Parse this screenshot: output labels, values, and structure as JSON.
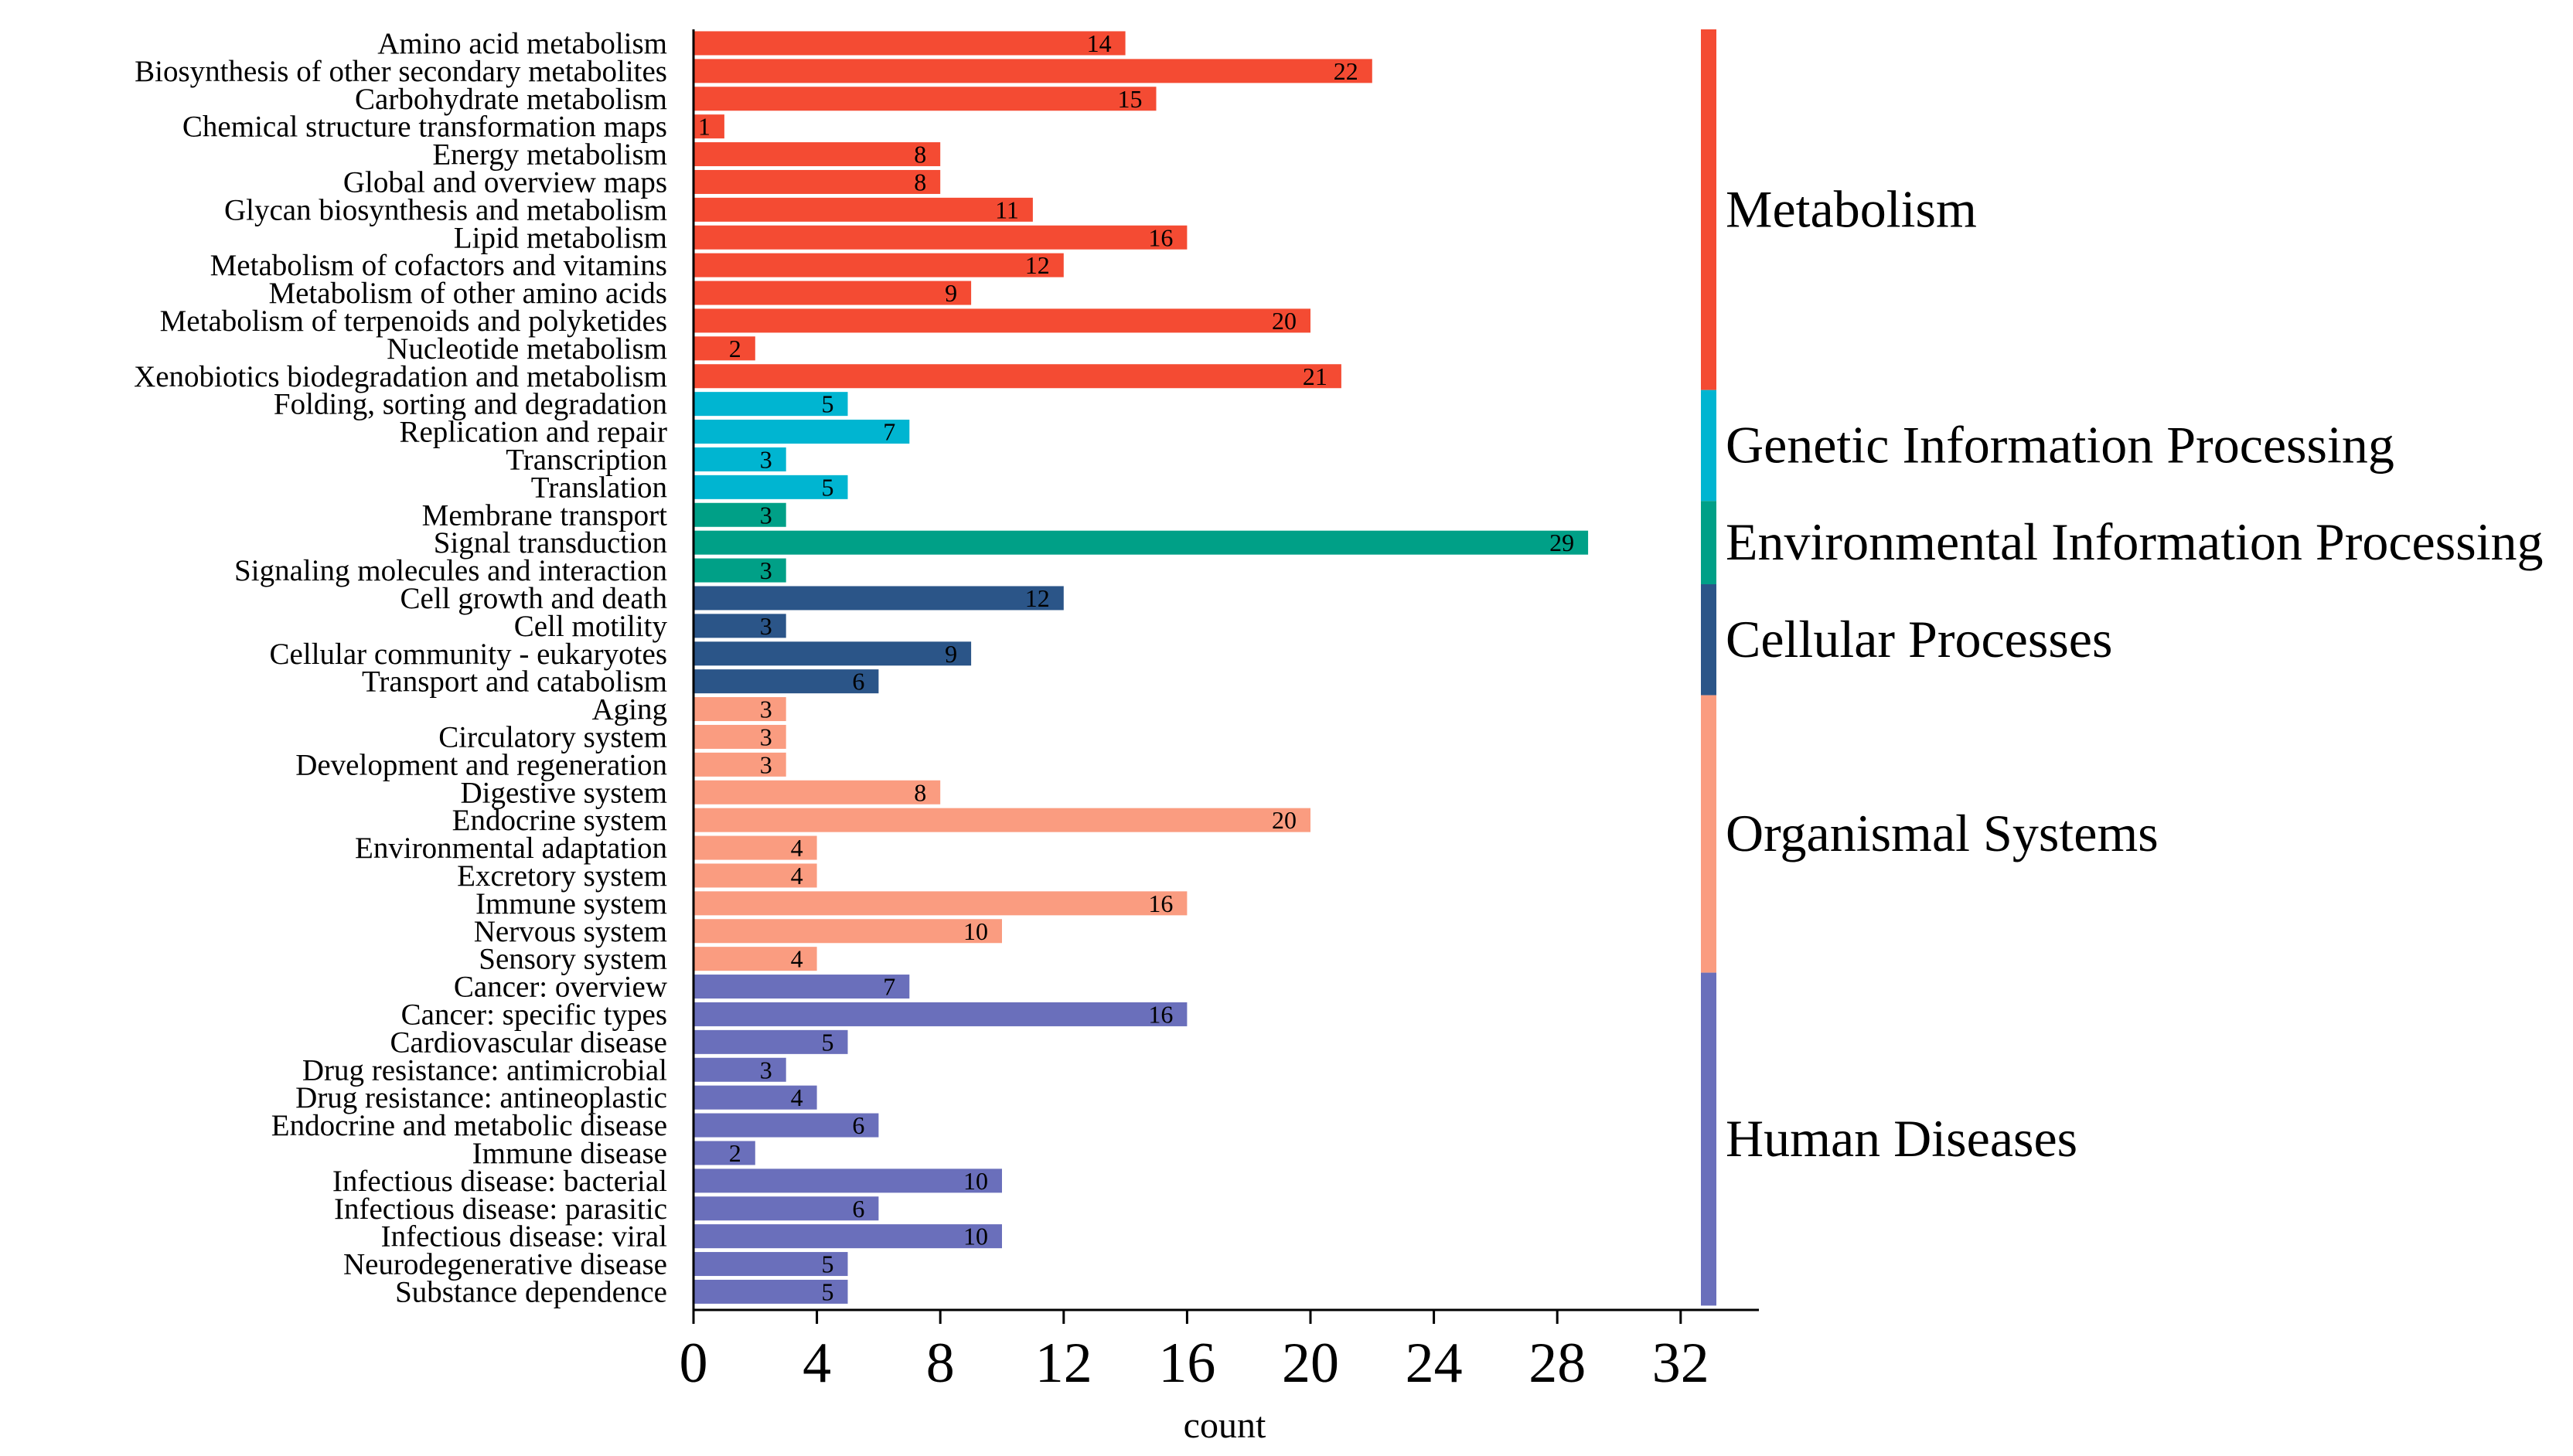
{
  "chart_data": {
    "type": "bar",
    "orientation": "horizontal",
    "title": "",
    "xlabel": "count",
    "ylabel": "",
    "xlim": [
      0,
      34
    ],
    "xticks": [
      0,
      4,
      8,
      12,
      16,
      20,
      24,
      28,
      32
    ],
    "grid": false,
    "legend": "right side colored group strip",
    "groups": [
      {
        "name": "Metabolism",
        "color": "#F44B33",
        "categories": [
          "Amino acid metabolism",
          "Biosynthesis of other secondary metabolites",
          "Carbohydrate metabolism",
          "Chemical structure transformation maps",
          "Energy metabolism",
          "Global and overview maps",
          "Glycan biosynthesis and metabolism",
          "Lipid metabolism",
          "Metabolism of cofactors and vitamins",
          "Metabolism of other amino acids",
          "Metabolism of terpenoids and polyketides",
          "Nucleotide metabolism",
          "Xenobiotics biodegradation and metabolism"
        ],
        "values": [
          14,
          22,
          15,
          1,
          8,
          8,
          11,
          16,
          12,
          9,
          20,
          2,
          21
        ]
      },
      {
        "name": "Genetic Information Processing",
        "color": "#00B5D1",
        "categories": [
          "Folding, sorting and degradation",
          "Replication and repair",
          "Transcription",
          "Translation"
        ],
        "values": [
          5,
          7,
          3,
          5
        ]
      },
      {
        "name": "Environmental Information Processing",
        "color": "#00A087",
        "categories": [
          "Membrane transport",
          "Signal transduction",
          "Signaling molecules and interaction"
        ],
        "values": [
          3,
          29,
          3
        ]
      },
      {
        "name": "Cellular Processes",
        "color": "#2B5588",
        "categories": [
          "Cell growth and death",
          "Cell motility",
          "Cellular community - eukaryotes",
          "Transport and catabolism"
        ],
        "values": [
          12,
          3,
          9,
          6
        ]
      },
      {
        "name": "Organismal Systems",
        "color": "#FA9C80",
        "categories": [
          "Aging",
          "Circulatory system",
          "Development and regeneration",
          "Digestive system",
          "Endocrine system",
          "Environmental adaptation",
          "Excretory system",
          "Immune system",
          "Nervous system",
          "Sensory system"
        ],
        "values": [
          3,
          3,
          3,
          8,
          20,
          4,
          4,
          16,
          10,
          4
        ]
      },
      {
        "name": "Human Diseases",
        "color": "#6A6FBB",
        "categories": [
          "Cancer: overview",
          "Cancer: specific types",
          "Cardiovascular disease",
          "Drug resistance: antimicrobial",
          "Drug resistance: antineoplastic",
          "Endocrine and metabolic disease",
          "Immune disease",
          "Infectious disease: bacterial",
          "Infectious disease: parasitic",
          "Infectious disease: viral",
          "Neurodegenerative disease",
          "Substance dependence"
        ],
        "values": [
          7,
          16,
          5,
          3,
          4,
          6,
          2,
          10,
          6,
          10,
          5,
          5
        ]
      }
    ]
  }
}
